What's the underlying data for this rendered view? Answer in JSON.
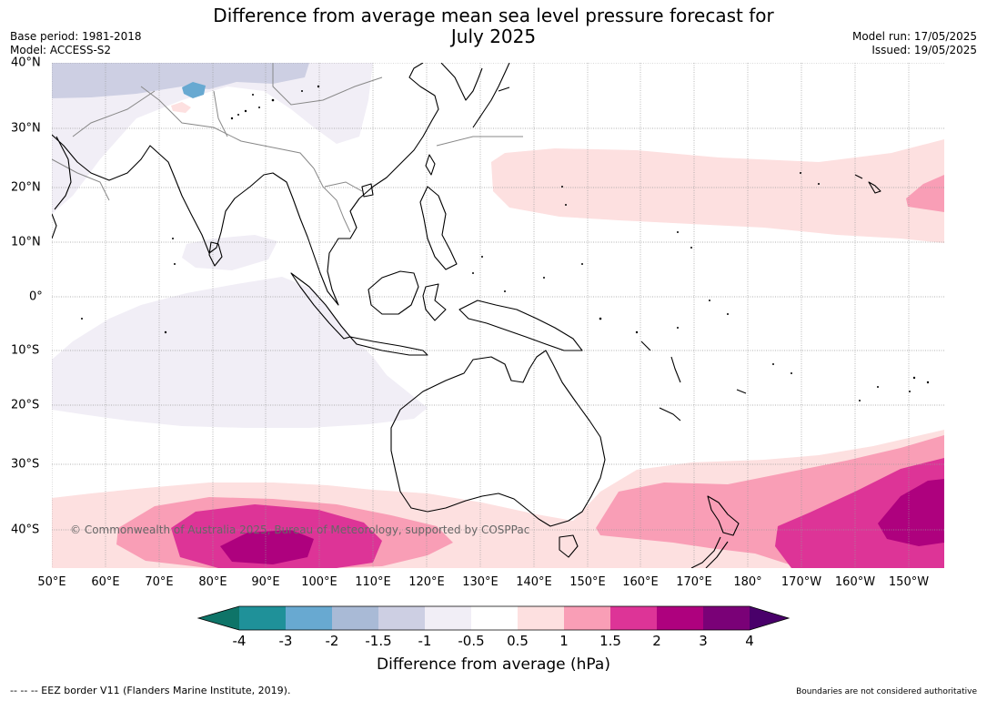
{
  "header": {
    "title_line1": "Difference from average mean sea level pressure forecast for",
    "title_line2": "July 2025",
    "base_period": "Base period: 1981-2018",
    "model": "Model: ACCESS-S2",
    "model_run": "Model run: 17/05/2025",
    "issued": "Issued: 19/05/2025"
  },
  "map": {
    "copyright": "© Commonwealth of Australia 2025, Bureau of Meteorology, supported by COSPPac",
    "lon_labels": [
      "50°E",
      "60°E",
      "70°E",
      "80°E",
      "90°E",
      "100°E",
      "110°E",
      "120°E",
      "130°E",
      "140°E",
      "150°E",
      "160°E",
      "170°E",
      "180°",
      "170°W",
      "160°W",
      "150°W"
    ],
    "lat_labels": [
      "40°N",
      "30°N",
      "20°N",
      "10°N",
      "0°",
      "10°S",
      "20°S",
      "30°S",
      "40°S"
    ],
    "colors": {
      "land_outline": "#000000",
      "border": "#888888",
      "grid": "#999999"
    }
  },
  "colorbar": {
    "labels": [
      "-4",
      "-3",
      "-2",
      "-1.5",
      "-1",
      "-0.5",
      "0.5",
      "1",
      "1.5",
      "2",
      "3",
      "4"
    ],
    "colors": [
      "#0e7468",
      "#1f9199",
      "#68a9d1",
      "#a9bad6",
      "#cdcfe3",
      "#f1eef6",
      "#ffffff",
      "#fde0e0",
      "#f99eb6",
      "#dd3497",
      "#ae017e",
      "#7a0177",
      "#49006a"
    ],
    "title": "Difference from average (hPa)"
  },
  "footer": {
    "eez_note": "--  --  -- EEZ border V11 (Flanders Marine Institute, 2019).",
    "disclaimer": "Boundaries are not considered authoritative"
  }
}
